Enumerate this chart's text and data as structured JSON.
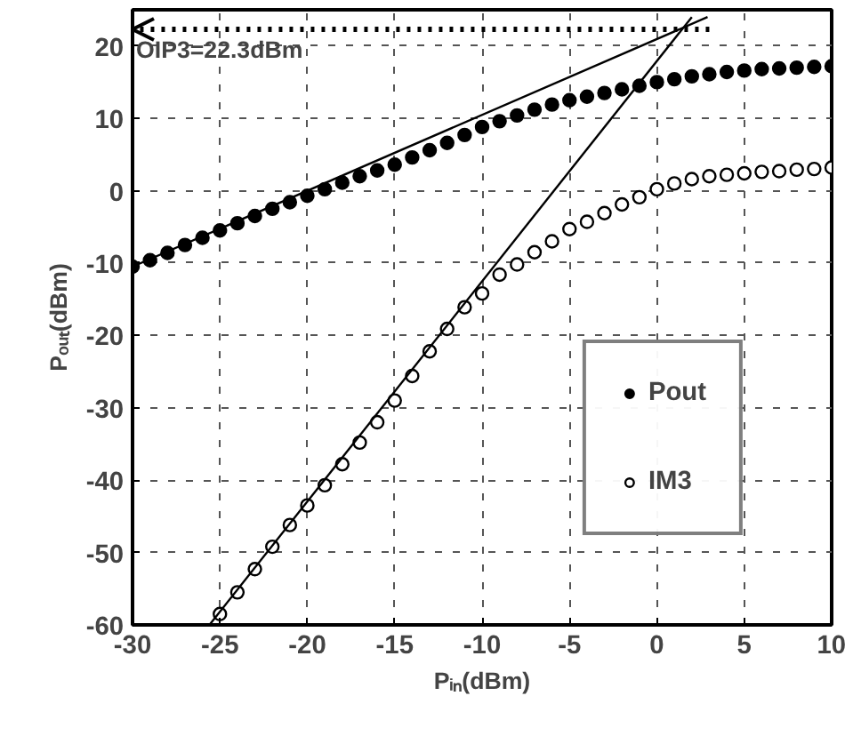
{
  "chart_data": {
    "type": "scatter",
    "xlabel": "Pᵢₙ(dBm)",
    "ylabel": "Pₒᵤₜ(dBm)",
    "xlim": [
      -30,
      10
    ],
    "xticks": [
      -30,
      -25,
      -20,
      -15,
      -10,
      -5,
      0,
      5,
      10
    ],
    "ylim": [
      -60,
      25
    ],
    "yticks": [
      -60,
      -50,
      -40,
      -30,
      -20,
      -10,
      0,
      10,
      20
    ],
    "grid": true,
    "legend": "bottom right",
    "marker": "circle",
    "annotations": [
      {
        "text": "OIP3=22.3dBm",
        "x": -30,
        "y": 22.3
      }
    ],
    "series": [
      {
        "name": "Pout",
        "color": "#000000",
        "x": [
          -30,
          -29,
          -28,
          -27,
          -26,
          -25,
          -24,
          -23,
          -22,
          -21,
          -20,
          -19,
          -18,
          -17,
          -16,
          -15,
          -14,
          -13,
          -12,
          -11,
          -10,
          -9,
          -8,
          -7,
          -6,
          -5,
          -4,
          -3,
          -2,
          -1,
          0,
          1,
          2,
          3,
          4,
          5,
          6,
          7,
          8,
          9,
          10
        ],
        "values": [
          -10.5,
          -9.6,
          -8.6,
          -7.5,
          -6.5,
          -5.5,
          -4.5,
          -3.5,
          -2.5,
          -1.6,
          -0.7,
          0.2,
          1.1,
          2.0,
          2.8,
          3.6,
          4.6,
          5.6,
          6.6,
          7.7,
          8.8,
          9.6,
          10.4,
          11.2,
          11.9,
          12.5,
          13.0,
          13.5,
          14.0,
          14.5,
          15.0,
          15.4,
          15.8,
          16.1,
          16.4,
          16.6,
          16.8,
          16.9,
          17.0,
          17.1,
          17.2
        ]
      },
      {
        "name": "IM3",
        "color": "#000000",
        "x": [
          -25,
          -24,
          -23,
          -22,
          -21,
          -20,
          -19,
          -18,
          -17,
          -16,
          -15,
          -14,
          -13,
          -12,
          -11,
          -10,
          -9,
          -8,
          -7,
          -6,
          -5,
          -4,
          -3,
          -2,
          -1,
          0,
          1,
          2,
          3,
          4,
          5,
          6,
          7,
          8,
          9,
          10
        ],
        "values": [
          -58.5,
          -55.5,
          -52.3,
          -49.2,
          -46.2,
          -43.5,
          -40.7,
          -37.8,
          -34.8,
          -32.0,
          -29.0,
          -25.6,
          -22.2,
          -19.1,
          -16.1,
          -14.2,
          -11.6,
          -10.2,
          -8.5,
          -7.0,
          -5.3,
          -4.3,
          -3.1,
          -1.9,
          -0.9,
          0.2,
          1.0,
          1.6,
          2.0,
          2.2,
          2.4,
          2.6,
          2.7,
          2.9,
          3.0,
          3.2
        ]
      },
      {
        "type": "line",
        "color": "#000000",
        "marker": "none",
        "x": [
          -30,
          2.9
        ],
        "values": [
          -10.5,
          24.0
        ]
      },
      {
        "type": "line",
        "color": "#000000",
        "marker": "none",
        "x": [
          -25.6,
          2.0
        ],
        "values": [
          -60,
          24.0
        ]
      },
      {
        "type": "line",
        "color": "#000000",
        "marker": "none",
        "line_style": "dotted",
        "x": [
          3,
          -30
        ],
        "values": [
          22.3,
          22.3
        ]
      }
    ]
  }
}
